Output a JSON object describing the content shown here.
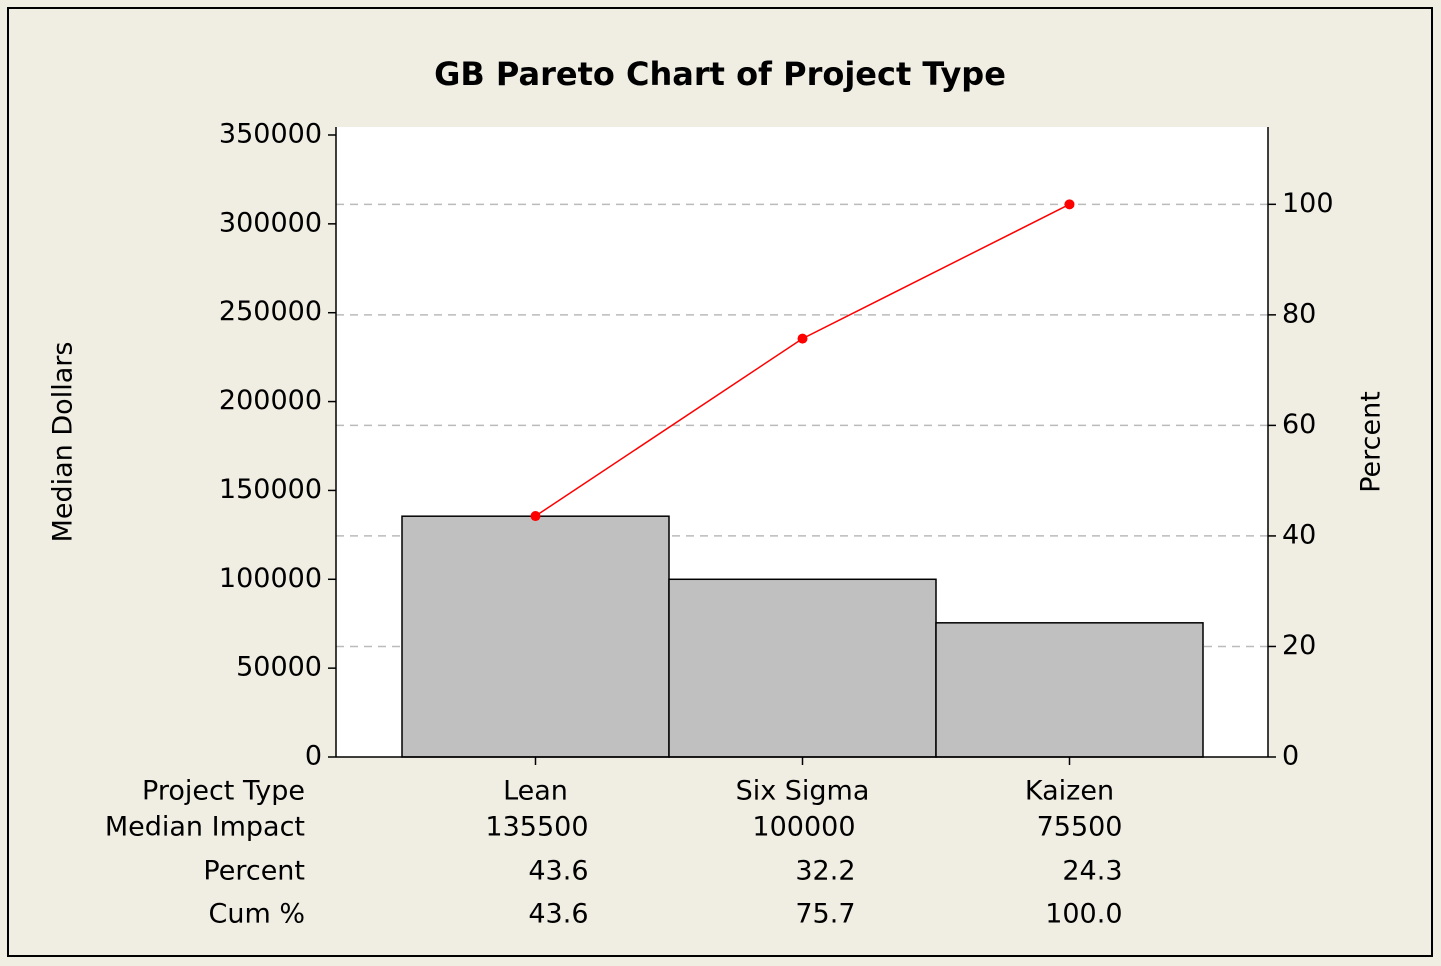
{
  "chart_data": {
    "type": "pareto",
    "title": "GB Pareto Chart of Project Type",
    "ylabel": "Median Dollars",
    "y2label": "Percent",
    "categories": [
      "Lean",
      "Six Sigma",
      "Kaizen"
    ],
    "series": [
      {
        "name": "Median Impact",
        "type": "bar",
        "color": "#c0c0c0",
        "values": [
          135500,
          100000,
          75500
        ]
      },
      {
        "name": "Cum %",
        "type": "line",
        "color": "#ff0000",
        "axis": "y2",
        "values": [
          43.6,
          75.7,
          100
        ],
        "value_labels": [
          "43.6",
          "75.7",
          "100.0"
        ]
      }
    ],
    "percent": [
      43.6,
      32.2,
      24.3
    ],
    "table_labels": [
      "Project Type",
      "Median Impact",
      "Percent",
      "Cum %"
    ],
    "ylim": [
      0,
      354500
    ],
    "yticks": [
      0,
      50000,
      100000,
      150000,
      200000,
      250000,
      300000,
      350000
    ],
    "y2lim": [
      0,
      113.99
    ],
    "y2ticks": [
      0,
      20,
      40,
      60,
      80,
      100
    ],
    "grid": "y2"
  }
}
